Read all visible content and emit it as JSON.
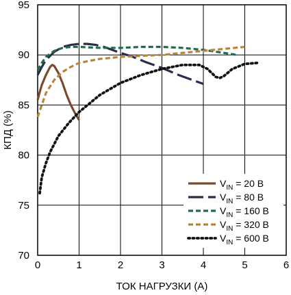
{
  "chart_data": {
    "type": "line",
    "title": "",
    "xlabel": "ТОК НАГРУЗКИ (А)",
    "ylabel": "КПД (%)",
    "xlim": [
      0,
      6
    ],
    "ylim": [
      70,
      95
    ],
    "xticks": [
      "0",
      "1",
      "2",
      "3",
      "4",
      "5",
      "6"
    ],
    "yticks": [
      "70",
      "75",
      "80",
      "85",
      "90",
      "95"
    ],
    "grid": true,
    "legend_position": "bottom-right",
    "series": [
      {
        "name_main": "V",
        "name_sub": "IN",
        "name_rest": " = 20 В",
        "color": "#7b4a2e",
        "style": "solid",
        "x": [
          0,
          0.05,
          0.1,
          0.2,
          0.3,
          0.35,
          0.4,
          0.5,
          0.6,
          0.7,
          0.8,
          0.9,
          1.0
        ],
        "y": [
          85.5,
          86.3,
          87.0,
          88.0,
          88.8,
          89.0,
          88.9,
          88.2,
          87.2,
          86.0,
          85.0,
          84.2,
          83.5
        ]
      },
      {
        "name_main": "V",
        "name_sub": "IN",
        "name_rest": " = 80 В",
        "color": "#2b2b4a",
        "style": "dash",
        "x": [
          0,
          0.1,
          0.2,
          0.4,
          0.6,
          0.8,
          1.0,
          1.2,
          1.4,
          1.6,
          1.8,
          2.0,
          2.3,
          2.6,
          3.0,
          3.4,
          3.8,
          4.0
        ],
        "y": [
          88.0,
          88.8,
          89.5,
          90.3,
          90.8,
          91.0,
          91.1,
          91.1,
          91.0,
          90.8,
          90.5,
          90.2,
          89.8,
          89.3,
          88.7,
          88.0,
          87.4,
          87.1
        ]
      },
      {
        "name_main": "V",
        "name_sub": "IN",
        "name_rest": " = 160 В",
        "color": "#1f6b4e",
        "style": "dash-short",
        "x": [
          0,
          0.1,
          0.2,
          0.4,
          0.6,
          0.8,
          1.0,
          1.5,
          2.0,
          2.5,
          3.0,
          3.5,
          4.0,
          4.5,
          4.8
        ],
        "y": [
          88.5,
          89.2,
          89.8,
          90.4,
          90.7,
          90.8,
          90.8,
          90.7,
          90.7,
          90.8,
          90.8,
          90.7,
          90.5,
          90.2,
          90.0
        ]
      },
      {
        "name_main": "V",
        "name_sub": "IN",
        "name_rest": " = 320 В",
        "color": "#b8863b",
        "style": "dash-short",
        "x": [
          0,
          0.1,
          0.2,
          0.4,
          0.6,
          0.8,
          1.0,
          1.5,
          2.0,
          2.5,
          3.0,
          3.5,
          4.0,
          4.5,
          5.0
        ],
        "y": [
          83.8,
          85.0,
          86.2,
          87.5,
          88.3,
          88.8,
          89.2,
          89.6,
          89.8,
          89.9,
          90.0,
          90.2,
          90.4,
          90.6,
          90.8
        ]
      },
      {
        "name_main": "V",
        "name_sub": "IN",
        "name_rest": " = 600 В",
        "color": "#111111",
        "style": "dot",
        "x": [
          0.05,
          0.1,
          0.2,
          0.3,
          0.5,
          0.75,
          1.0,
          1.5,
          2.0,
          2.5,
          3.0,
          3.5,
          3.9,
          4.1,
          4.3,
          4.4,
          4.5,
          4.7,
          5.0,
          5.3
        ],
        "y": [
          76.2,
          77.8,
          79.2,
          80.3,
          81.9,
          83.2,
          84.3,
          86.0,
          87.2,
          88.0,
          88.6,
          89.0,
          89.0,
          88.6,
          87.8,
          87.7,
          87.9,
          88.6,
          89.1,
          89.2
        ]
      }
    ]
  }
}
